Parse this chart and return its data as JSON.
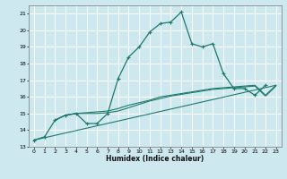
{
  "xlabel": "Humidex (Indice chaleur)",
  "xlim": [
    -0.5,
    23.5
  ],
  "ylim": [
    13,
    21.5
  ],
  "yticks": [
    13,
    14,
    15,
    16,
    17,
    18,
    19,
    20,
    21
  ],
  "xticks": [
    0,
    1,
    2,
    3,
    4,
    5,
    6,
    7,
    8,
    9,
    10,
    11,
    12,
    13,
    14,
    15,
    16,
    17,
    18,
    19,
    20,
    21,
    22,
    23
  ],
  "bg_color": "#cde8ee",
  "grid_color": "#ffffff",
  "line_color": "#1e7a6a",
  "line1": {
    "x": [
      0,
      1,
      2,
      3,
      4,
      5,
      6,
      7,
      8,
      9,
      10,
      11,
      12,
      13,
      14,
      15,
      16,
      17,
      18,
      19,
      20,
      21,
      22
    ],
    "y": [
      13.4,
      13.6,
      14.6,
      14.9,
      15.0,
      14.4,
      14.4,
      15.0,
      17.1,
      18.4,
      19.0,
      19.9,
      20.4,
      20.5,
      21.1,
      19.2,
      19.0,
      19.2,
      17.4,
      16.5,
      16.5,
      16.1,
      16.7
    ]
  },
  "line2": {
    "x": [
      2,
      3,
      4,
      5,
      6,
      7,
      8,
      9,
      10,
      11,
      12,
      13,
      14,
      15,
      16,
      17,
      18,
      19,
      20,
      21,
      22,
      23
    ],
    "y": [
      14.6,
      14.9,
      15.0,
      15.05,
      15.1,
      15.15,
      15.3,
      15.5,
      15.65,
      15.8,
      16.0,
      16.1,
      16.2,
      16.3,
      16.4,
      16.5,
      16.55,
      16.6,
      16.65,
      16.7,
      16.1,
      16.7
    ]
  },
  "line3": {
    "x": [
      2,
      3,
      4,
      5,
      6,
      7,
      8,
      9,
      10,
      11,
      12,
      13,
      14,
      15,
      16,
      17,
      18,
      19,
      20,
      21,
      22,
      23
    ],
    "y": [
      14.6,
      14.9,
      15.0,
      15.0,
      15.0,
      15.05,
      15.15,
      15.35,
      15.55,
      15.75,
      15.9,
      16.05,
      16.15,
      16.25,
      16.35,
      16.45,
      16.5,
      16.55,
      16.6,
      16.65,
      16.05,
      16.65
    ]
  },
  "line4": {
    "x": [
      0,
      23
    ],
    "y": [
      13.4,
      16.7
    ]
  }
}
